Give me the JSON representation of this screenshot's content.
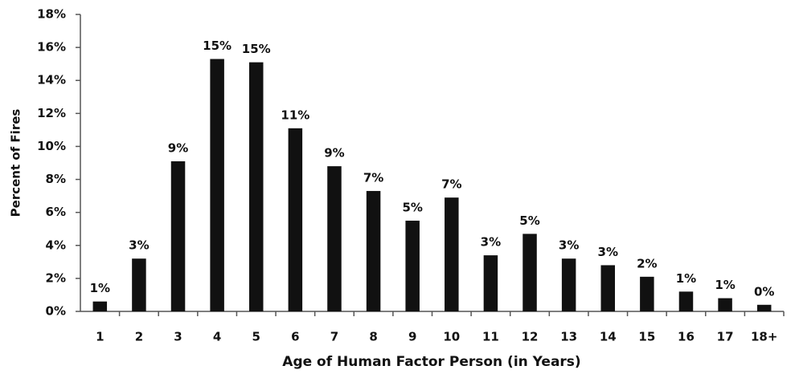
{
  "chart_data": {
    "type": "bar",
    "y_label": "Percent of Fires",
    "x_label": "Age of Human Factor Person (in Years)",
    "categories": [
      "1",
      "2",
      "3",
      "4",
      "5",
      "6",
      "7",
      "8",
      "9",
      "10",
      "11",
      "12",
      "13",
      "14",
      "15",
      "16",
      "17",
      "18+"
    ],
    "values": [
      0.6,
      3.2,
      9.1,
      15.3,
      15.1,
      11.1,
      8.8,
      7.3,
      5.5,
      6.9,
      3.4,
      4.7,
      3.2,
      2.8,
      2.1,
      1.2,
      0.8,
      0.4
    ],
    "value_labels": [
      "1%",
      "3%",
      "9%",
      "15%",
      "15%",
      "11%",
      "9%",
      "7%",
      "5%",
      "7%",
      "3%",
      "5%",
      "3%",
      "3%",
      "2%",
      "1%",
      "1%",
      "0%"
    ],
    "color": "#111111",
    "ylim": [
      0,
      18
    ],
    "yticks": [
      {
        "value": 0,
        "label": "0%"
      },
      {
        "value": 2,
        "label": "2%"
      },
      {
        "value": 4,
        "label": "4%"
      },
      {
        "value": 6,
        "label": "6%"
      },
      {
        "value": 8,
        "label": "8%"
      },
      {
        "value": 10,
        "label": "10%"
      },
      {
        "value": 12,
        "label": "12%"
      },
      {
        "value": 14,
        "label": "14%"
      },
      {
        "value": 16,
        "label": "16%"
      },
      {
        "value": 18,
        "label": "18%"
      }
    ],
    "grid": false
  }
}
